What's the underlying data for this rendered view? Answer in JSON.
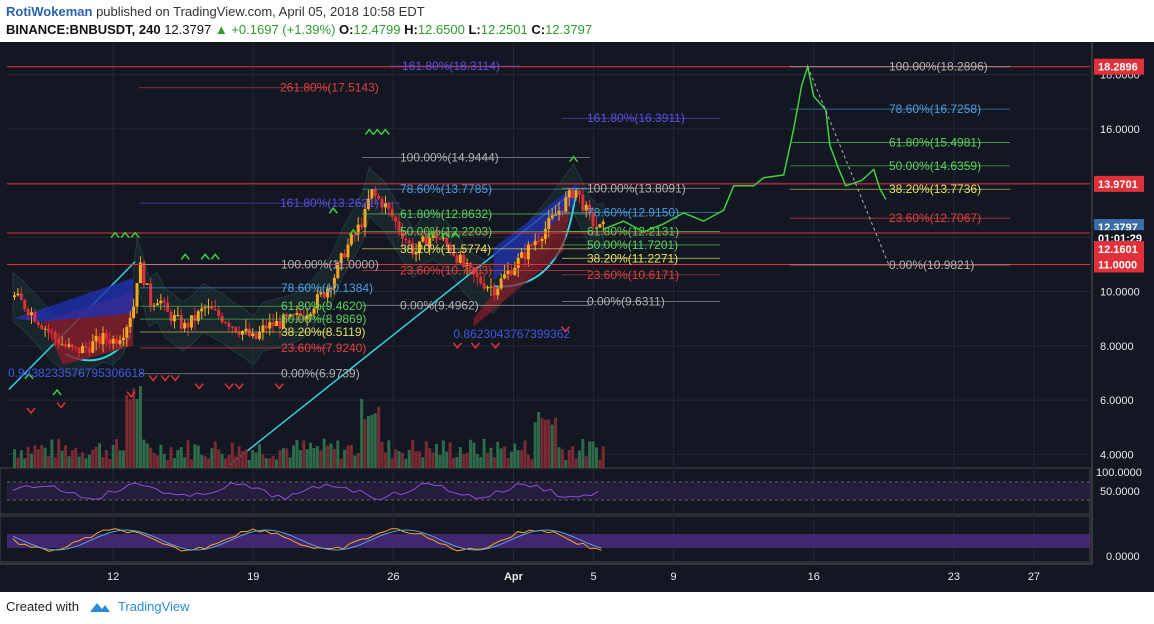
{
  "header": {
    "author": "RotiWokeman",
    "published": "published on TradingView.com, April 05, 2018 10:58 EDT",
    "symbol": "BINANCE:BNBUSDT, 240",
    "last": "12.3797",
    "arrow": "▲",
    "change": "+0.1697 (+1.39%)",
    "o_label": "O:",
    "o_value": "12.4799",
    "h_label": "H:",
    "h_value": "12.6500",
    "l_label": "L:",
    "l_value": "12.2501",
    "c_label": "C:",
    "c_value": "12.3797"
  },
  "footer": {
    "created_with": "Created with",
    "brand": "TradingView"
  },
  "colors": {
    "background": "#131722",
    "up": "#f5a623",
    "down": "#e0303a",
    "volume_up": "#2e6b4a",
    "volume_down": "#7a2a33",
    "red_line": "#e0303a",
    "cyan": "#37d0e0",
    "fib_grey": "#b0b0b0",
    "fib_blue": "#4a9fe0",
    "fib_green": "#5ed05e",
    "fib_yellow": "#e0e060",
    "fib_red": "#e04040",
    "ext_blue": "#5a50e0"
  },
  "chart_data": {
    "type": "candlestick",
    "symbol": "BINANCE:BNBUSDT",
    "interval": "240",
    "ylim": [
      3.5,
      19.2
    ],
    "y_ticks": [
      4,
      6,
      8,
      10,
      12,
      14,
      16,
      18
    ],
    "y_tick_labels": [
      "4.0000",
      "6.0000",
      "8.0000",
      "10.0000",
      "12.0000",
      "14.0000",
      "16.0000",
      "18.0000"
    ],
    "x_ticks": [
      {
        "label": "12",
        "day": 12
      },
      {
        "label": "19",
        "day": 19
      },
      {
        "label": "26",
        "day": 26
      },
      {
        "label": "Apr",
        "day": 32
      },
      {
        "label": "5",
        "day": 36
      },
      {
        "label": "9",
        "day": 40
      },
      {
        "label": "16",
        "day": 47
      },
      {
        "label": "23",
        "day": 54
      },
      {
        "label": "27",
        "day": 58
      }
    ],
    "xlim": [
      6.7,
      60.8
    ],
    "last_candle_day": 36.5,
    "horizontal_lines": [
      18.2896,
      13.9701,
      12.1601,
      11.0
    ],
    "price_tags": [
      {
        "label": "18.2896",
        "value": 18.2896,
        "color": "#e0303a"
      },
      {
        "label": "13.9701",
        "value": 13.9701,
        "color": "#e0303a"
      },
      {
        "label": "12.3797",
        "value": 12.3797,
        "color": "#3a6ea8"
      },
      {
        "label": "01:01:29",
        "value": 11.97,
        "color": "#131722"
      },
      {
        "label": "12.1601",
        "value": 11.57,
        "color": "#e0303a"
      },
      {
        "label": "11.0000",
        "value": 11.0,
        "color": "#e0303a"
      }
    ],
    "price_path": [
      [
        7.0,
        9.8
      ],
      [
        7.5,
        9.5
      ],
      [
        8.0,
        9.1
      ],
      [
        8.5,
        8.7
      ],
      [
        9.0,
        8.3
      ],
      [
        9.5,
        8.0
      ],
      [
        10.0,
        7.8
      ],
      [
        10.5,
        7.9
      ],
      [
        11.0,
        8.1
      ],
      [
        11.5,
        8.3
      ],
      [
        12.0,
        8.2
      ],
      [
        12.5,
        8.6
      ],
      [
        13.0,
        9.6
      ],
      [
        13.2,
        11.1
      ],
      [
        13.5,
        10.4
      ],
      [
        13.8,
        9.6
      ],
      [
        14.2,
        9.8
      ],
      [
        14.6,
        9.2
      ],
      [
        15.0,
        9.0
      ],
      [
        15.5,
        8.7
      ],
      [
        16.0,
        9.0
      ],
      [
        16.5,
        9.4
      ],
      [
        17.0,
        9.2
      ],
      [
        17.5,
        9.0
      ],
      [
        18.0,
        8.7
      ],
      [
        18.5,
        8.5
      ],
      [
        19.0,
        8.2
      ],
      [
        19.5,
        8.7
      ],
      [
        20.0,
        8.8
      ],
      [
        20.5,
        8.9
      ],
      [
        21.0,
        9.0
      ],
      [
        21.5,
        9.2
      ],
      [
        22.0,
        9.6
      ],
      [
        22.5,
        10.0
      ],
      [
        23.0,
        10.6
      ],
      [
        23.5,
        11.5
      ],
      [
        24.0,
        12.1
      ],
      [
        24.5,
        12.8
      ],
      [
        24.8,
        13.7
      ],
      [
        25.0,
        13.5
      ],
      [
        25.5,
        13.2
      ],
      [
        26.0,
        12.6
      ],
      [
        26.5,
        12.0
      ],
      [
        27.0,
        11.4
      ],
      [
        27.5,
        11.9
      ],
      [
        28.0,
        12.1
      ],
      [
        28.5,
        11.8
      ],
      [
        29.0,
        11.4
      ],
      [
        29.5,
        10.9
      ],
      [
        30.0,
        10.5
      ],
      [
        30.5,
        10.3
      ],
      [
        31.0,
        10.1
      ],
      [
        31.5,
        10.6
      ],
      [
        32.0,
        11.0
      ],
      [
        32.5,
        11.4
      ],
      [
        33.0,
        11.9
      ],
      [
        33.5,
        12.3
      ],
      [
        34.0,
        12.8
      ],
      [
        34.5,
        13.3
      ],
      [
        35.0,
        13.8
      ],
      [
        35.4,
        13.2
      ],
      [
        35.8,
        12.6
      ],
      [
        36.2,
        12.3
      ],
      [
        36.5,
        12.38
      ]
    ],
    "fib_sets": [
      {
        "levels": [
          {
            "label": "261.80%(17.5143)",
            "value": 17.5143,
            "color": "#e04040"
          },
          {
            "label": "161.80%(18.3114)",
            "value": 18.3114,
            "color": "#5a50e0"
          }
        ]
      },
      {
        "levels": [
          {
            "label": "100.00%(14.9444)",
            "value": 14.9444,
            "color": "#b0b0b0"
          },
          {
            "label": "78.60%(13.7785)",
            "value": 13.7785,
            "color": "#4a9fe0"
          },
          {
            "label": "61.80%(12.8632)",
            "value": 12.8632,
            "color": "#5ed05e"
          },
          {
            "label": "50.00%(12.2203)",
            "value": 12.2203,
            "color": "#5ed05e"
          },
          {
            "label": "38.20%(11.5774)",
            "value": 11.5774,
            "color": "#e0e060"
          },
          {
            "label": "23.60%(10.7803)",
            "value": 10.7803,
            "color": "#e04040"
          },
          {
            "label": "0.00%(9.4962)",
            "value": 9.4962,
            "color": "#b0b0b0"
          },
          {
            "label": "161.80%(13.2621)",
            "value": 13.2621,
            "color": "#5a50e0"
          }
        ]
      },
      {
        "levels": [
          {
            "label": "100.00%(11.0000)",
            "value": 11.0,
            "color": "#b0b0b0"
          },
          {
            "label": "78.60%(10.1384)",
            "value": 10.1384,
            "color": "#4a9fe0"
          },
          {
            "label": "61.80%(9.4620)",
            "value": 9.462,
            "color": "#5ed05e"
          },
          {
            "label": "50.00%(8.9869)",
            "value": 8.9869,
            "color": "#5ed05e"
          },
          {
            "label": "38.20%(8.5119)",
            "value": 8.5119,
            "color": "#e0e060"
          },
          {
            "label": "23.60%(7.9240)",
            "value": 7.924,
            "color": "#e04040"
          },
          {
            "label": "0.00%(6.9739)",
            "value": 6.9739,
            "color": "#b0b0b0"
          }
        ]
      },
      {
        "levels": [
          {
            "label": "100.00%(13.8091)",
            "value": 13.8091,
            "color": "#b0b0b0"
          },
          {
            "label": "78.60%(12.9150)",
            "value": 12.915,
            "color": "#4a9fe0"
          },
          {
            "label": "61.80%(12.2131)",
            "value": 12.2131,
            "color": "#5ed05e"
          },
          {
            "label": "50.00%(11.7201)",
            "value": 11.7201,
            "color": "#5ed05e"
          },
          {
            "label": "38.20%(11.2271)",
            "value": 11.2271,
            "color": "#e0e060"
          },
          {
            "label": "23.60%(10.6171)",
            "value": 10.6171,
            "color": "#e04040"
          },
          {
            "label": "0.00%(9.6311)",
            "value": 9.6311,
            "color": "#b0b0b0"
          },
          {
            "label": "161.80%(16.3911)",
            "value": 16.3911,
            "color": "#5a50e0"
          }
        ]
      },
      {
        "levels": [
          {
            "label": "100.00%(18.2896)",
            "value": 18.2896,
            "color": "#b0b0b0"
          },
          {
            "label": "78.60%(16.7258)",
            "value": 16.7258,
            "color": "#4a9fe0"
          },
          {
            "label": "61.80%(15.4981)",
            "value": 15.4981,
            "color": "#5ed05e"
          },
          {
            "label": "50.00%(14.6359)",
            "value": 14.6359,
            "color": "#5ed05e"
          },
          {
            "label": "38.20%(13.7736)",
            "value": 13.7736,
            "color": "#e0e060"
          },
          {
            "label": "23.60%(12.7067)",
            "value": 12.7067,
            "color": "#e04040"
          },
          {
            "label": "0.00%(10.9821)",
            "value": 10.9821,
            "color": "#b0b0b0"
          }
        ]
      }
    ],
    "projection_path": [
      [
        36.5,
        12.3
      ],
      [
        37.5,
        12.6
      ],
      [
        38.5,
        12.2
      ],
      [
        39.5,
        12.5
      ],
      [
        40.5,
        12.9
      ],
      [
        41.5,
        12.6
      ],
      [
        42.5,
        13.0
      ],
      [
        43.0,
        13.9
      ],
      [
        44.0,
        13.9
      ],
      [
        44.5,
        14.2
      ],
      [
        45.5,
        14.3
      ],
      [
        46.0,
        16.0
      ],
      [
        46.4,
        17.6
      ],
      [
        46.7,
        18.29
      ],
      [
        47.0,
        17.2
      ],
      [
        47.6,
        16.7
      ],
      [
        47.8,
        15.4
      ],
      [
        48.2,
        14.6
      ],
      [
        48.6,
        13.9
      ],
      [
        49.4,
        14.1
      ],
      [
        50.0,
        14.5
      ],
      [
        50.3,
        13.8
      ],
      [
        50.6,
        13.4
      ]
    ],
    "lower_panels": [
      {
        "name": "RSI",
        "tick_labels": [
          "100.0000",
          "50.0000"
        ]
      },
      {
        "name": "Stoch",
        "tick_labels": [
          "0.0000"
        ]
      }
    ],
    "annotations": [
      "0.9438233576795306618",
      "0.8623043767399362"
    ]
  }
}
